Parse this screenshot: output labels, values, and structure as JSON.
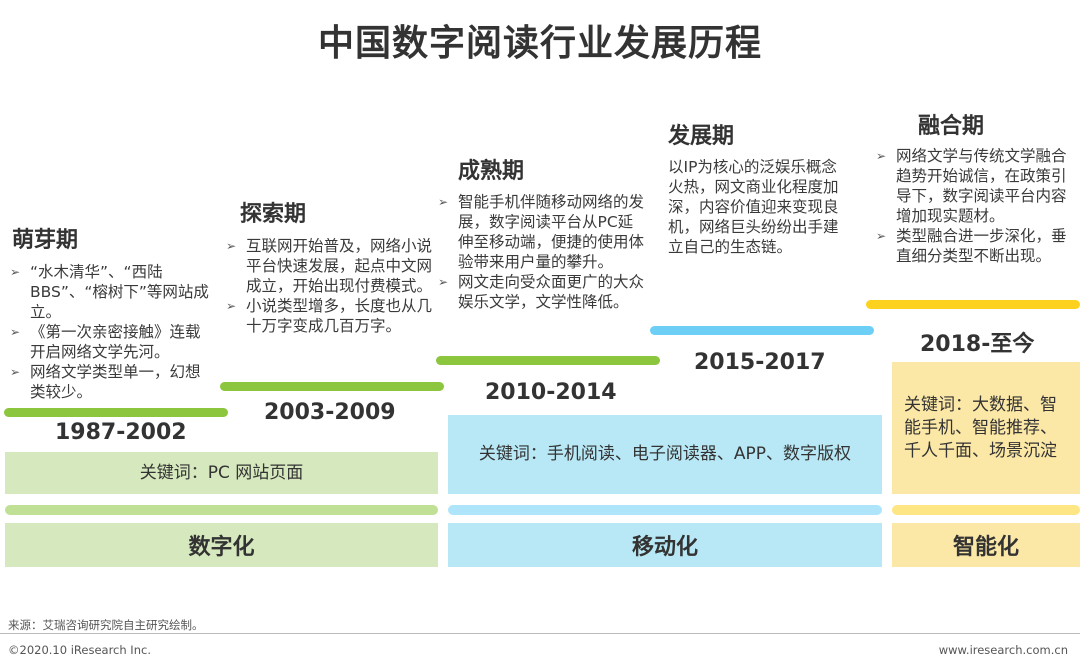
{
  "title": "中国数字阅读行业发展历程",
  "stages": [
    {
      "name": "萌芽期",
      "years": "1987-2002",
      "bullets": [
        "“水木清华”、“西陆BBS”、“榕树下”等网站成立。",
        "《第一次亲密接触》连载开启网络文学先河。",
        "网络文学类型单一，幻想类较少。"
      ]
    },
    {
      "name": "探索期",
      "years": "2003-2009",
      "bullets": [
        "互联网开始普及，网络小说平台快速发展，起点中文网成立，开始出现付费模式。",
        "小说类型增多，长度也从几十万字变成几百万字。"
      ]
    },
    {
      "name": "成熟期",
      "years": "2010-2014",
      "bullets": [
        "智能手机伴随移动网络的发展，数字阅读平台从PC延伸至移动端，便捷的使用体验带来用户量的攀升。",
        "网文走向受众面更广的大众娱乐文学，文学性降低。"
      ]
    },
    {
      "name": "发展期",
      "years": "2015-2017",
      "text": "以IP为核心的泛娱乐概念火热，网文商业化程度加深，内容价值迎来变现良机，网络巨头纷纷出手建立自己的生态链。"
    },
    {
      "name": "融合期",
      "years": "2018-至今",
      "bullets": [
        "网络文学与传统文学融合趋势开始诚信，在政策引导下，数字阅读平台内容增加现实题材。",
        "类型融合进一步深化，垂直细分类型不断出现。"
      ]
    }
  ],
  "keywords": {
    "pc": "关键词：PC  网站页面",
    "mobile": "关键词：手机阅读、电子阅读器、APP、数字版权",
    "smart": "关键词：大数据、智能手机、智能推荐、千人千面、场景沉淀"
  },
  "bands": {
    "digital": "数字化",
    "mobile": "移动化",
    "smart": "智能化"
  },
  "footer": {
    "source": "来源：艾瑞咨询研究院自主研究绘制。",
    "copyright": "©2020.10 iResearch Inc.",
    "website": "www.iresearch.com.cn"
  },
  "colors": {
    "green": "#8cc63f",
    "blue": "#6dcff6",
    "yellow": "#fcd21e"
  }
}
